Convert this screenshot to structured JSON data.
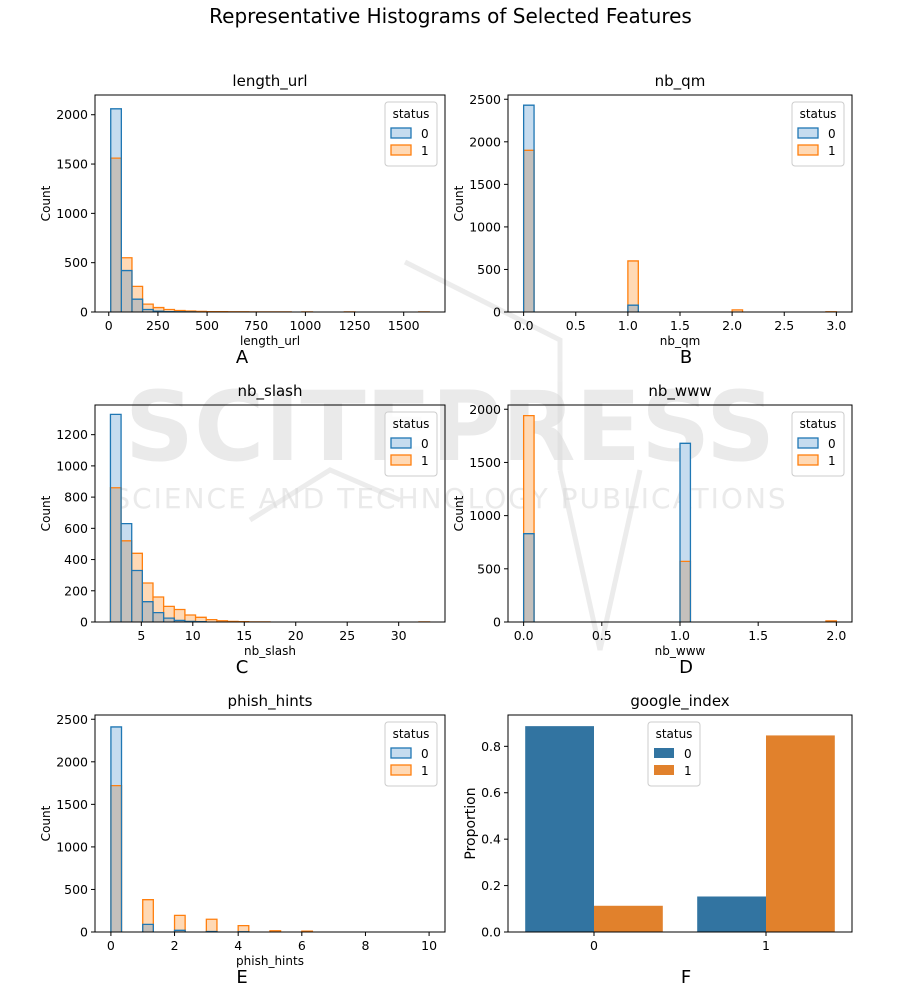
{
  "figure": {
    "title": "Representative Histograms of Selected Features"
  },
  "watermark": {
    "text_large": "SCITEPRESS",
    "text_small": "SCIENCE AND TECHNOLOGY PUBLICATIONS"
  },
  "colors": {
    "blue": "#1f77b4",
    "orange": "#ff7f0e",
    "blue_fill": "#c6dcef",
    "orange_fill": "#ffd9b5",
    "overlap": "#c4c0bc",
    "bar_blue": "#3274a1",
    "bar_orange": "#e1812c"
  },
  "chart_data": [
    {
      "id": "length_url",
      "letter": "A",
      "type": "histogram",
      "title": "length_url",
      "xlabel": "length_url",
      "ylabel": "Count",
      "xlim": [
        -70,
        1710
      ],
      "ylim": [
        0,
        2200
      ],
      "xticks": [
        0,
        250,
        500,
        750,
        1000,
        1250,
        1500
      ],
      "yticks": [
        0,
        500,
        1000,
        1500,
        2000
      ],
      "bin_start": 10,
      "bin_width": 54,
      "legend": {
        "title": "status",
        "entries": [
          "0",
          "1"
        ],
        "position": "top-right"
      },
      "series": [
        {
          "name": "0",
          "values": [
            2060,
            420,
            130,
            25,
            8,
            4,
            2,
            1,
            0,
            0,
            0,
            0,
            0,
            0,
            0,
            0,
            0,
            0,
            0,
            0,
            0,
            0,
            0,
            0,
            0,
            0,
            0,
            0,
            0,
            0
          ]
        },
        {
          "name": "1",
          "values": [
            1560,
            550,
            260,
            80,
            45,
            25,
            15,
            10,
            6,
            4,
            3,
            2,
            2,
            1,
            1,
            1,
            1,
            0,
            1,
            0,
            0,
            0,
            1,
            0,
            0,
            0,
            0,
            0,
            0,
            1
          ]
        }
      ]
    },
    {
      "id": "nb_qm",
      "letter": "B",
      "type": "histogram",
      "title": "nb_qm",
      "xlabel": "nb_qm",
      "ylabel": "Count",
      "xlim": [
        -0.15,
        3.15
      ],
      "ylim": [
        0,
        2550
      ],
      "xticks": [
        0.0,
        0.5,
        1.0,
        1.5,
        2.0,
        2.5,
        3.0
      ],
      "yticks": [
        0,
        500,
        1000,
        1500,
        2000,
        2500
      ],
      "bin_start": 0,
      "bin_width": 0.1,
      "legend": {
        "title": "status",
        "entries": [
          "0",
          "1"
        ],
        "position": "top-right"
      },
      "series": [
        {
          "name": "0",
          "values": [
            2430,
            0,
            0,
            0,
            0,
            0,
            0,
            0,
            0,
            0,
            80,
            0,
            0,
            0,
            0,
            0,
            0,
            0,
            0,
            0,
            0,
            0,
            0,
            0,
            0,
            0,
            0,
            0,
            0,
            0
          ]
        },
        {
          "name": "1",
          "values": [
            1900,
            0,
            0,
            0,
            0,
            0,
            0,
            0,
            0,
            0,
            600,
            0,
            0,
            0,
            0,
            0,
            0,
            0,
            0,
            0,
            25,
            0,
            0,
            0,
            0,
            0,
            0,
            0,
            0,
            3
          ]
        }
      ]
    },
    {
      "id": "nb_slash",
      "letter": "C",
      "type": "histogram",
      "title": "nb_slash",
      "xlabel": "nb_slash",
      "ylabel": "Count",
      "xlim": [
        0.5,
        34.5
      ],
      "ylim": [
        0,
        1390
      ],
      "xticks": [
        5,
        10,
        15,
        20,
        25,
        30
      ],
      "yticks": [
        0,
        200,
        400,
        600,
        800,
        1000,
        1200
      ],
      "bin_start": 2,
      "bin_width": 1.0333,
      "legend": {
        "title": "status",
        "entries": [
          "0",
          "1"
        ],
        "position": "top-right"
      },
      "series": [
        {
          "name": "0",
          "values": [
            1330,
            630,
            330,
            130,
            60,
            25,
            10,
            4,
            2,
            0,
            0,
            0,
            0,
            0,
            0,
            0,
            0,
            0,
            0,
            0,
            0,
            0,
            0,
            0,
            0,
            0,
            0,
            0,
            0,
            0
          ]
        },
        {
          "name": "1",
          "values": [
            860,
            520,
            440,
            250,
            160,
            100,
            80,
            45,
            30,
            15,
            8,
            4,
            2,
            1,
            1,
            0,
            0,
            0,
            0,
            0,
            0,
            0,
            0,
            0,
            0,
            0,
            0,
            0,
            0,
            1
          ]
        }
      ]
    },
    {
      "id": "nb_www",
      "letter": "D",
      "type": "histogram",
      "title": "nb_www",
      "xlabel": "nb_www",
      "ylabel": "Count",
      "xlim": [
        -0.1,
        2.1
      ],
      "ylim": [
        0,
        2040
      ],
      "xticks": [
        0.0,
        0.5,
        1.0,
        1.5,
        2.0
      ],
      "yticks": [
        0,
        500,
        1000,
        1500,
        2000
      ],
      "bin_start": 0,
      "bin_width": 0.06667,
      "legend": {
        "title": "status",
        "entries": [
          "0",
          "1"
        ],
        "position": "top-right"
      },
      "series": [
        {
          "name": "0",
          "values": [
            830,
            0,
            0,
            0,
            0,
            0,
            0,
            0,
            0,
            0,
            0,
            0,
            0,
            0,
            0,
            1680,
            0,
            0,
            0,
            0,
            0,
            0,
            0,
            0,
            0,
            0,
            0,
            0,
            0,
            0
          ]
        },
        {
          "name": "1",
          "values": [
            1940,
            0,
            0,
            0,
            0,
            0,
            0,
            0,
            0,
            0,
            0,
            0,
            0,
            0,
            0,
            570,
            0,
            0,
            0,
            0,
            0,
            0,
            0,
            0,
            0,
            0,
            0,
            0,
            0,
            10
          ]
        }
      ]
    },
    {
      "id": "phish_hints",
      "letter": "E",
      "type": "histogram",
      "title": "phish_hints",
      "xlabel": "phish_hints",
      "ylabel": "Count",
      "xlim": [
        -0.5,
        10.5
      ],
      "ylim": [
        0,
        2550
      ],
      "xticks": [
        0,
        2,
        4,
        6,
        8,
        10
      ],
      "yticks": [
        0,
        500,
        1000,
        1500,
        2000,
        2500
      ],
      "bin_start": 0,
      "bin_width": 0.3333,
      "legend": {
        "title": "status",
        "entries": [
          "0",
          "1"
        ],
        "position": "top-right"
      },
      "series": [
        {
          "name": "0",
          "values": [
            2410,
            0,
            0,
            90,
            0,
            0,
            20,
            0,
            0,
            5,
            0,
            0,
            2,
            0,
            0,
            0,
            0,
            0,
            0,
            0,
            0,
            0,
            0,
            0,
            0,
            0,
            0,
            0,
            0,
            0
          ]
        },
        {
          "name": "1",
          "values": [
            1720,
            0,
            0,
            380,
            0,
            0,
            195,
            0,
            0,
            150,
            0,
            0,
            75,
            0,
            0,
            15,
            0,
            0,
            10,
            0,
            0,
            0,
            0,
            0,
            0,
            0,
            0,
            0,
            0,
            0
          ]
        }
      ]
    },
    {
      "id": "google_index",
      "letter": "F",
      "type": "bar",
      "title": "google_index",
      "xlabel": "",
      "ylabel": "Proportion",
      "ylim": [
        0,
        0.935
      ],
      "yticks": [
        0.0,
        0.2,
        0.4,
        0.6,
        0.8
      ],
      "categories": [
        "0",
        "1"
      ],
      "legend": {
        "title": "status",
        "entries": [
          "0",
          "1"
        ],
        "position": "top-center"
      },
      "series": [
        {
          "name": "0",
          "values": [
            0.887,
            0.153
          ]
        },
        {
          "name": "1",
          "values": [
            0.113,
            0.847
          ]
        }
      ]
    }
  ]
}
